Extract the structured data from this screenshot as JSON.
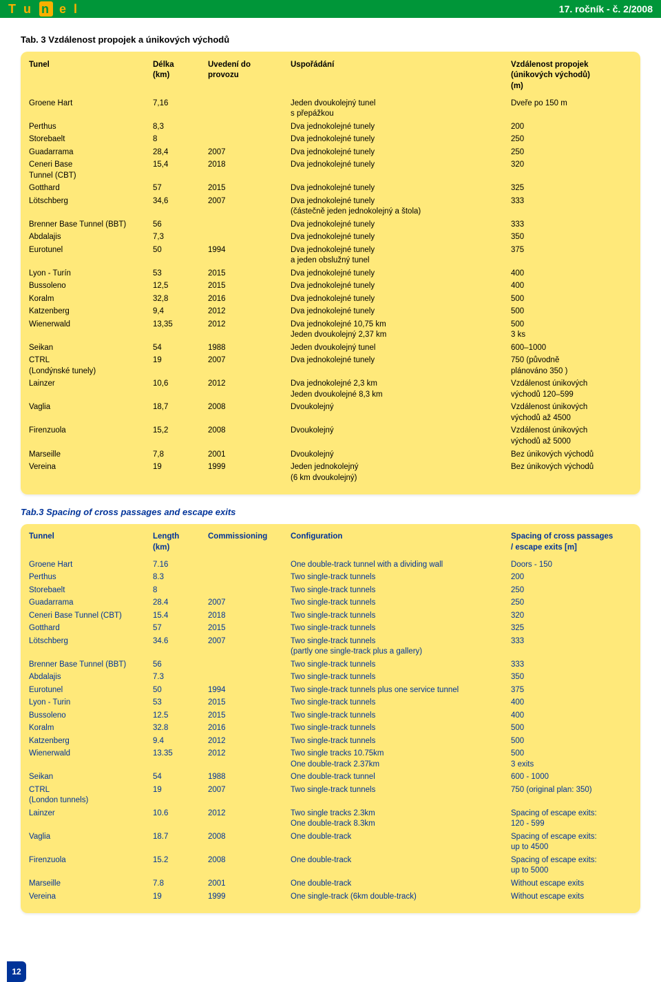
{
  "header": {
    "logo_text": "Tu n el",
    "issue": "17. ročník - č. 2/2008"
  },
  "table_cz": {
    "title": "Tab. 3 Vzdálenost propojek a únikových východů",
    "headers": {
      "name": "Tunel",
      "length": "Délka\n(km)",
      "commission": "Uvedení do\nprovozu",
      "config": "Uspořádání",
      "spacing": "Vzdálenost propojek\n(únikových východů)\n(m)"
    },
    "rows": [
      {
        "name": "Groene Hart",
        "len": "7,16",
        "comm": "",
        "conf": "Jeden dvoukolejný tunel\ns přepážkou",
        "spc": "Dveře po 150 m"
      },
      {
        "name": "Perthus",
        "len": "8,3",
        "comm": "",
        "conf": "Dva jednokolejné tunely",
        "spc": "200"
      },
      {
        "name": "Storebaelt",
        "len": "8",
        "comm": "",
        "conf": "Dva jednokolejné tunely",
        "spc": "250"
      },
      {
        "name": "Guadarrama",
        "len": "28,4",
        "comm": "2007",
        "conf": "Dva jednokolejné tunely",
        "spc": "250"
      },
      {
        "name": "Ceneri Base\nTunnel (CBT)",
        "len": "15,4",
        "comm": "2018",
        "conf": "Dva jednokolejné tunely",
        "spc": "320"
      },
      {
        "name": "Gotthard",
        "len": "57",
        "comm": "2015",
        "conf": "Dva jednokolejné tunely",
        "spc": "325"
      },
      {
        "name": "Lötschberg",
        "len": "34,6",
        "comm": "2007",
        "conf": "Dva jednokolejné tunely\n(částečně jeden jednokolejný a štola)",
        "spc": "333"
      },
      {
        "name": "Brenner Base Tunnel (BBT)",
        "len": "56",
        "comm": "",
        "conf": "Dva jednokolejné tunely",
        "spc": "333"
      },
      {
        "name": "Abdalajis",
        "len": "7,3",
        "comm": "",
        "conf": "Dva jednokolejné tunely",
        "spc": "350"
      },
      {
        "name": "Eurotunel",
        "len": "50",
        "comm": "1994",
        "conf": "Dva jednokolejné tunely\na jeden obslužný tunel",
        "spc": "375"
      },
      {
        "name": "Lyon - Turín",
        "len": "53",
        "comm": "2015",
        "conf": "Dva jednokolejné tunely",
        "spc": "400"
      },
      {
        "name": "Bussoleno",
        "len": "12,5",
        "comm": "2015",
        "conf": "Dva jednokolejné tunely",
        "spc": "400"
      },
      {
        "name": "Koralm",
        "len": "32,8",
        "comm": "2016",
        "conf": "Dva jednokolejné tunely",
        "spc": "500"
      },
      {
        "name": "Katzenberg",
        "len": "9,4",
        "comm": "2012",
        "conf": "Dva jednokolejné tunely",
        "spc": "500"
      },
      {
        "name": "Wienerwald",
        "len": "13,35",
        "comm": "2012",
        "conf": "Dva jednokolejné 10,75 km\nJeden dvoukolejný 2,37 km",
        "spc": "500\n3 ks"
      },
      {
        "name": "Seikan",
        "len": "54",
        "comm": "1988",
        "conf": "Jeden dvoukolejný tunel",
        "spc": "600–1000"
      },
      {
        "name": "CTRL\n(Londýnské tunely)",
        "len": "19",
        "comm": "2007",
        "conf": "Dva jednokolejné tunely",
        "spc": "750 (původně\nplánováno 350 )"
      },
      {
        "name": "Lainzer",
        "len": "10,6",
        "comm": "2012",
        "conf": "Dva jednokolejné 2,3 km\nJeden dvoukolejné 8,3 km",
        "spc": "Vzdálenost únikových\nvýchodů 120–599"
      },
      {
        "name": "Vaglia",
        "len": "18,7",
        "comm": "2008",
        "conf": "Dvoukolejný",
        "spc": "Vzdálenost únikových\nvýchodů až 4500"
      },
      {
        "name": "Firenzuola",
        "len": "15,2",
        "comm": "2008",
        "conf": "Dvoukolejný",
        "spc": "Vzdálenost únikových\nvýchodů až 5000"
      },
      {
        "name": "Marseille",
        "len": "7,8",
        "comm": "2001",
        "conf": "Dvoukolejný",
        "spc": "Bez únikových východů"
      },
      {
        "name": "Vereina",
        "len": "19",
        "comm": "1999",
        "conf": "Jeden jednokolejný\n(6 km dvoukolejný)",
        "spc": "Bez únikových východů"
      }
    ]
  },
  "table_en": {
    "title": "Tab.3 Spacing of cross passages and escape exits",
    "headers": {
      "name": "Tunnel",
      "length": "Length\n(km)",
      "commission": "Commissioning",
      "config": "Configuration",
      "spacing": "Spacing of cross passages\n/ escape exits [m]"
    },
    "rows": [
      {
        "name": "Groene Hart",
        "len": "7.16",
        "comm": "",
        "conf": "One double-track tunnel with a dividing wall",
        "spc": "Doors - 150"
      },
      {
        "name": "Perthus",
        "len": "8.3",
        "comm": "",
        "conf": "Two single-track tunnels",
        "spc": "200"
      },
      {
        "name": "Storebaelt",
        "len": "8",
        "comm": "",
        "conf": "Two single-track tunnels",
        "spc": "250"
      },
      {
        "name": "Guadarrama",
        "len": "28.4",
        "comm": "2007",
        "conf": "Two single-track tunnels",
        "spc": "250"
      },
      {
        "name": "Ceneri Base Tunnel (CBT)",
        "len": "15.4",
        "comm": "2018",
        "conf": "Two single-track tunnels",
        "spc": "320"
      },
      {
        "name": "Gotthard",
        "len": "57",
        "comm": "2015",
        "conf": "Two single-track tunnels",
        "spc": "325"
      },
      {
        "name": "Lötschberg",
        "len": "34.6",
        "comm": "2007",
        "conf": "Two single-track tunnels\n(partly one single-track plus a gallery)",
        "spc": "333"
      },
      {
        "name": "Brenner Base Tunnel (BBT)",
        "len": "56",
        "comm": "",
        "conf": "Two single-track tunnels",
        "spc": "333"
      },
      {
        "name": "Abdalajis",
        "len": "7.3",
        "comm": "",
        "conf": "Two single-track tunnels",
        "spc": "350"
      },
      {
        "name": "Eurotunel",
        "len": "50",
        "comm": "1994",
        "conf": "Two single-track tunnels plus one service tunnel",
        "spc": "375"
      },
      {
        "name": "Lyon - Turin",
        "len": "53",
        "comm": "2015",
        "conf": "Two single-track tunnels",
        "spc": "400"
      },
      {
        "name": "Bussoleno",
        "len": "12.5",
        "comm": "2015",
        "conf": "Two single-track tunnels",
        "spc": "400"
      },
      {
        "name": "Koralm",
        "len": "32.8",
        "comm": "2016",
        "conf": "Two single-track tunnels",
        "spc": "500"
      },
      {
        "name": "Katzenberg",
        "len": "9.4",
        "comm": "2012",
        "conf": "Two single-track tunnels",
        "spc": "500"
      },
      {
        "name": "Wienerwald",
        "len": "13.35",
        "comm": "2012",
        "conf": "Two single tracks 10.75km\nOne double-track 2.37km",
        "spc": "500\n3 exits"
      },
      {
        "name": "Seikan",
        "len": "54",
        "comm": "1988",
        "conf": "One double-track tunnel",
        "spc": "600 - 1000"
      },
      {
        "name": "CTRL\n(London tunnels)",
        "len": "19",
        "comm": "2007",
        "conf": "Two single-track tunnels",
        "spc": "750 (original plan: 350)"
      },
      {
        "name": "Lainzer",
        "len": "10.6",
        "comm": "2012",
        "conf": "Two single tracks 2.3km\nOne double-track 8.3km",
        "spc": "Spacing of escape exits:\n120 - 599"
      },
      {
        "name": "Vaglia",
        "len": "18.7",
        "comm": "2008",
        "conf": "One double-track",
        "spc": "Spacing of escape exits:\nup to 4500"
      },
      {
        "name": "Firenzuola",
        "len": "15.2",
        "comm": "2008",
        "conf": "One double-track",
        "spc": "Spacing of escape exits:\nup to 5000"
      },
      {
        "name": "Marseille",
        "len": "7.8",
        "comm": "2001",
        "conf": "One double-track",
        "spc": "Without escape exits"
      },
      {
        "name": "Vereina",
        "len": "19",
        "comm": "1999",
        "conf": "One single-track (6km double-track)",
        "spc": "Without escape exits"
      }
    ]
  },
  "page_number": "12",
  "colors": {
    "green": "#009639",
    "orange": "#f9b000",
    "table_bg": "#ffe97a",
    "blue": "#003399"
  }
}
